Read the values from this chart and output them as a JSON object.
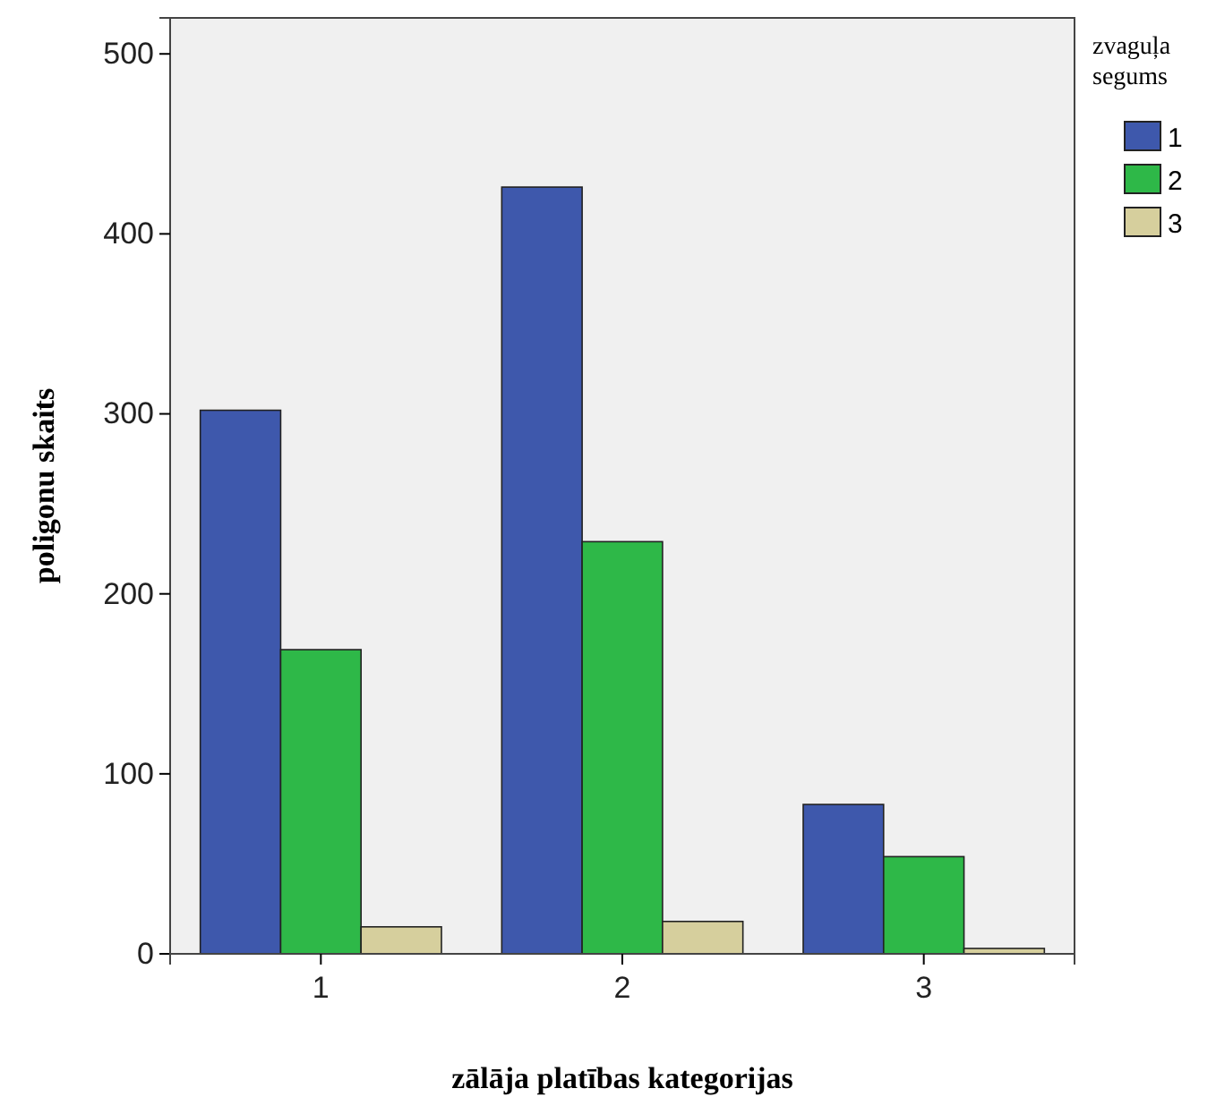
{
  "chart_data": {
    "type": "bar",
    "xlabel": "zālāja platības kategorijas",
    "ylabel": "poligonu skaits",
    "legend_title": "zvaguļa segums",
    "categories": [
      "1",
      "2",
      "3"
    ],
    "series": [
      {
        "name": "1",
        "color": "#3e58ac",
        "values": [
          302,
          426,
          83
        ]
      },
      {
        "name": "2",
        "color": "#2eb848",
        "values": [
          169,
          229,
          54
        ]
      },
      {
        "name": "3",
        "color": "#d6cf9d",
        "values": [
          15,
          18,
          3
        ]
      }
    ],
    "ylim": [
      0,
      520
    ],
    "yticks": [
      0,
      100,
      200,
      300,
      400,
      500
    ],
    "grid": false,
    "legend": "right"
  }
}
